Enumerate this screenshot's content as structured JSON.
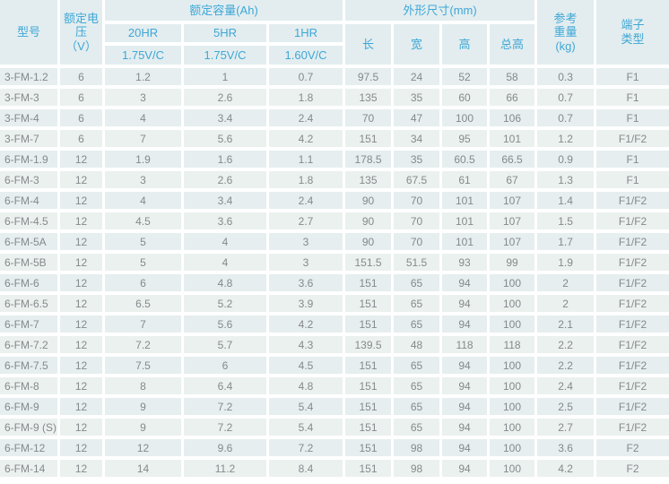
{
  "table": {
    "header": {
      "model": "型号",
      "voltage": "额定电压\n（V）",
      "capacity_group": "额定容量(Ah)",
      "capacity_cols": [
        {
          "rate": "20HR",
          "cutoff": "1.75V/C"
        },
        {
          "rate": "5HR",
          "cutoff": "1.75V/C"
        },
        {
          "rate": "1HR",
          "cutoff": "1.60V/C"
        }
      ],
      "dimension_group": "外形尺寸(mm)",
      "dimension_cols": {
        "length": "长",
        "width": "宽",
        "height": "高",
        "total_height": "总高"
      },
      "weight": "参考\n重量\n(kg)",
      "terminal": "端子\n类型"
    },
    "column_keys": [
      "model",
      "voltage",
      "cap-20hr",
      "cap-5hr",
      "cap-1hr",
      "length",
      "width",
      "height",
      "total-height",
      "weight",
      "terminal"
    ],
    "rows": [
      [
        "3-FM-1.2",
        "6",
        "1.2",
        "1",
        "0.7",
        "97.5",
        "24",
        "52",
        "58",
        "0.3",
        "F1"
      ],
      [
        "3-FM-3",
        "6",
        "3",
        "2.6",
        "1.8",
        "135",
        "35",
        "60",
        "66",
        "0.7",
        "F1"
      ],
      [
        "3-FM-4",
        "6",
        "4",
        "3.4",
        "2.4",
        "70",
        "47",
        "100",
        "106",
        "0.7",
        "F1"
      ],
      [
        "3-FM-7",
        "6",
        "7",
        "5.6",
        "4.2",
        "151",
        "34",
        "95",
        "101",
        "1.2",
        "F1/F2"
      ],
      [
        "6-FM-1.9",
        "12",
        "1.9",
        "1.6",
        "1.1",
        "178.5",
        "35",
        "60.5",
        "66.5",
        "0.9",
        "F1"
      ],
      [
        "6-FM-3",
        "12",
        "3",
        "2.6",
        "1.8",
        "135",
        "67.5",
        "61",
        "67",
        "1.3",
        "F1"
      ],
      [
        "6-FM-4",
        "12",
        "4",
        "3.4",
        "2.4",
        "90",
        "70",
        "101",
        "107",
        "1.4",
        "F1/F2"
      ],
      [
        "6-FM-4.5",
        "12",
        "4.5",
        "3.6",
        "2.7",
        "90",
        "70",
        "101",
        "107",
        "1.5",
        "F1/F2"
      ],
      [
        "6-FM-5A",
        "12",
        "5",
        "4",
        "3",
        "90",
        "70",
        "101",
        "107",
        "1.7",
        "F1/F2"
      ],
      [
        "6-FM-5B",
        "12",
        "5",
        "4",
        "3",
        "151.5",
        "51.5",
        "93",
        "99",
        "1.9",
        "F1/F2"
      ],
      [
        "6-FM-6",
        "12",
        "6",
        "4.8",
        "3.6",
        "151",
        "65",
        "94",
        "100",
        "2",
        "F1/F2"
      ],
      [
        "6-FM-6.5",
        "12",
        "6.5",
        "5.2",
        "3.9",
        "151",
        "65",
        "94",
        "100",
        "2",
        "F1/F2"
      ],
      [
        "6-FM-7",
        "12",
        "7",
        "5.6",
        "4.2",
        "151",
        "65",
        "94",
        "100",
        "2.1",
        "F1/F2"
      ],
      [
        "6-FM-7.2",
        "12",
        "7.2",
        "5.7",
        "4.3",
        "139.5",
        "48",
        "118",
        "118",
        "2.2",
        "F1/F2"
      ],
      [
        "6-FM-7.5",
        "12",
        "7.5",
        "6",
        "4.5",
        "151",
        "65",
        "94",
        "100",
        "2.2",
        "F1/F2"
      ],
      [
        "6-FM-8",
        "12",
        "8",
        "6.4",
        "4.8",
        "151",
        "65",
        "94",
        "100",
        "2.4",
        "F1/F2"
      ],
      [
        "6-FM-9",
        "12",
        "9",
        "7.2",
        "5.4",
        "151",
        "65",
        "94",
        "100",
        "2.5",
        "F1/F2"
      ],
      [
        "6-FM-9 (S)",
        "12",
        "9",
        "7.2",
        "5.4",
        "151",
        "65",
        "94",
        "100",
        "2.7",
        "F1/F2"
      ],
      [
        "6-FM-12",
        "12",
        "12",
        "9.6",
        "7.2",
        "151",
        "98",
        "94",
        "100",
        "3.6",
        "F2"
      ],
      [
        "6-FM-14",
        "12",
        "14",
        "11.2",
        "8.4",
        "151",
        "98",
        "94",
        "100",
        "4.2",
        "F2"
      ]
    ]
  },
  "colors": {
    "header_text": "#3ea7d7",
    "body_text": "#85898c",
    "header_bg": "#e3edef",
    "row_odd_bg": "#e6eeef",
    "row_even_bg": "#ebf1ee",
    "grid_gap": "#ffffff"
  }
}
